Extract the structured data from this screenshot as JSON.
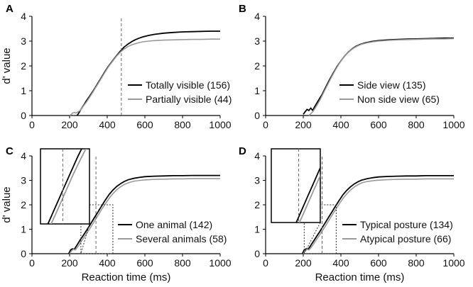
{
  "chart_data": [
    {
      "type": "line",
      "panel": "A",
      "xlabel": "",
      "ylabel": "d' value",
      "xlim": [
        0,
        1000
      ],
      "ylim": [
        0,
        4
      ],
      "xticks": [
        "0",
        "200",
        "400",
        "600",
        "800",
        "1000"
      ],
      "yticks": [
        "0",
        "1",
        "2",
        "3",
        "4"
      ],
      "series": [
        {
          "name": "Totally visible (156)",
          "color": "#000000",
          "x": [
            240,
            250,
            260,
            275,
            290,
            310,
            330,
            350,
            370,
            390,
            410,
            430,
            450,
            470,
            490,
            510,
            530,
            550,
            570,
            590,
            620,
            650,
            700,
            750,
            800,
            850,
            900,
            950,
            1000
          ],
          "y": [
            0,
            0.12,
            0.25,
            0.42,
            0.6,
            0.82,
            1.05,
            1.3,
            1.55,
            1.8,
            2.02,
            2.22,
            2.42,
            2.6,
            2.76,
            2.88,
            2.98,
            3.06,
            3.12,
            3.17,
            3.23,
            3.27,
            3.32,
            3.35,
            3.37,
            3.38,
            3.39,
            3.4,
            3.4
          ]
        },
        {
          "name": "Partially visible (44)",
          "color": "#999999",
          "x": [
            200,
            210,
            215,
            225,
            235,
            245,
            255,
            270,
            290,
            310,
            330,
            350,
            370,
            390,
            410,
            430,
            450,
            470,
            490,
            510,
            530,
            550,
            570,
            590,
            620,
            650,
            700,
            750,
            800,
            850,
            900,
            950,
            1000
          ],
          "y": [
            0,
            0.05,
            0.1,
            0.12,
            0.1,
            0.15,
            0.2,
            0.35,
            0.55,
            0.78,
            1.02,
            1.27,
            1.52,
            1.77,
            2.0,
            2.2,
            2.4,
            2.56,
            2.68,
            2.78,
            2.85,
            2.9,
            2.94,
            2.97,
            3.0,
            3.02,
            3.04,
            3.05,
            3.06,
            3.07,
            3.07,
            3.08,
            3.08
          ]
        }
      ],
      "markers": [
        {
          "type": "vline",
          "x": 475
        }
      ]
    },
    {
      "type": "line",
      "panel": "B",
      "xlabel": "",
      "ylabel": "",
      "xlim": [
        0,
        1000
      ],
      "ylim": [
        0,
        4
      ],
      "xticks": [
        "0",
        "200",
        "400",
        "600",
        "800",
        "1000"
      ],
      "yticks": [
        "0",
        "1",
        "2",
        "3",
        "4"
      ],
      "series": [
        {
          "name": "Side view (135)",
          "color": "#000000",
          "x": [
            200,
            210,
            220,
            230,
            240,
            250,
            260,
            280,
            300,
            320,
            340,
            360,
            380,
            400,
            420,
            440,
            460,
            480,
            500,
            530,
            560,
            600,
            650,
            700,
            750,
            800,
            850,
            900,
            950,
            1000
          ],
          "y": [
            0.05,
            0.15,
            0.25,
            0.2,
            0.3,
            0.2,
            0.35,
            0.6,
            0.85,
            1.15,
            1.45,
            1.72,
            1.98,
            2.2,
            2.4,
            2.56,
            2.69,
            2.79,
            2.86,
            2.93,
            2.98,
            3.02,
            3.05,
            3.07,
            3.08,
            3.09,
            3.1,
            3.11,
            3.12,
            3.12
          ]
        },
        {
          "name": "Non side view (65)",
          "color": "#999999",
          "x": [
            230,
            250,
            270,
            290,
            310,
            330,
            350,
            370,
            390,
            410,
            430,
            450,
            470,
            490,
            510,
            540,
            570,
            600,
            650,
            700,
            750,
            800,
            850,
            900,
            950,
            1000
          ],
          "y": [
            0,
            0.15,
            0.38,
            0.65,
            0.95,
            1.25,
            1.55,
            1.83,
            2.08,
            2.3,
            2.48,
            2.62,
            2.73,
            2.81,
            2.87,
            2.93,
            2.97,
            3.0,
            3.03,
            3.05,
            3.06,
            3.07,
            3.08,
            3.09,
            3.09,
            3.1
          ]
        }
      ]
    },
    {
      "type": "line",
      "panel": "C",
      "xlabel": "Reaction time (ms)",
      "ylabel": "d' value",
      "xlim": [
        0,
        1000
      ],
      "ylim": [
        0,
        4
      ],
      "xticks": [
        "0",
        "200",
        "400",
        "600",
        "800",
        "1000"
      ],
      "yticks": [
        "0",
        "1",
        "2",
        "3",
        "4"
      ],
      "series": [
        {
          "name": "One animal (142)",
          "color": "#000000",
          "x": [
            195,
            205,
            215,
            225,
            235,
            245,
            255,
            270,
            290,
            310,
            330,
            350,
            370,
            390,
            410,
            430,
            450,
            470,
            490,
            510,
            540,
            570,
            600,
            650,
            700,
            750,
            800,
            850,
            900,
            950,
            1000
          ],
          "y": [
            0,
            0.15,
            0.2,
            0.18,
            0.3,
            0.42,
            0.55,
            0.72,
            0.95,
            1.2,
            1.45,
            1.7,
            1.95,
            2.2,
            2.42,
            2.6,
            2.75,
            2.86,
            2.95,
            3.02,
            3.08,
            3.12,
            3.15,
            3.17,
            3.18,
            3.19,
            3.19,
            3.2,
            3.2,
            3.2,
            3.2
          ]
        },
        {
          "name": "Several animals (58)",
          "color": "#999999",
          "x": [
            200,
            210,
            220,
            230,
            240,
            250,
            260,
            275,
            295,
            315,
            335,
            355,
            375,
            395,
            415,
            435,
            455,
            475,
            495,
            515,
            545,
            575,
            605,
            650,
            700,
            750,
            800,
            850,
            900,
            950,
            1000
          ],
          "y": [
            0,
            0.12,
            0.18,
            0.15,
            0.25,
            0.35,
            0.48,
            0.65,
            0.88,
            1.12,
            1.37,
            1.62,
            1.87,
            2.1,
            2.32,
            2.5,
            2.65,
            2.76,
            2.85,
            2.91,
            2.97,
            3.0,
            3.02,
            3.04,
            3.05,
            3.06,
            3.06,
            3.07,
            3.07,
            3.07,
            3.07
          ]
        }
      ],
      "markers": [
        {
          "type": "vline",
          "x": 340
        },
        {
          "type": "box",
          "x0": 260,
          "x1": 430,
          "y0": 0,
          "y1": 2
        }
      ]
    },
    {
      "type": "line",
      "panel": "D",
      "xlabel": "Reaction time (ms)",
      "ylabel": "",
      "xlim": [
        0,
        1000
      ],
      "ylim": [
        0,
        4
      ],
      "xticks": [
        "0",
        "200",
        "400",
        "600",
        "800",
        "1000"
      ],
      "yticks": [
        "0",
        "1",
        "2",
        "3",
        "4"
      ],
      "series": [
        {
          "name": "Typical posture (134)",
          "color": "#000000",
          "x": [
            195,
            205,
            215,
            225,
            235,
            245,
            255,
            270,
            290,
            310,
            330,
            350,
            370,
            390,
            410,
            430,
            450,
            470,
            490,
            510,
            540,
            570,
            600,
            650,
            700,
            750,
            800,
            850,
            900,
            950,
            1000
          ],
          "y": [
            0,
            0.15,
            0.2,
            0.18,
            0.28,
            0.4,
            0.52,
            0.7,
            0.93,
            1.18,
            1.43,
            1.68,
            1.93,
            2.17,
            2.4,
            2.58,
            2.73,
            2.85,
            2.94,
            3.01,
            3.07,
            3.11,
            3.14,
            3.16,
            3.17,
            3.18,
            3.18,
            3.19,
            3.19,
            3.19,
            3.19
          ]
        },
        {
          "name": "Atypical posture (66)",
          "color": "#999999",
          "x": [
            200,
            210,
            220,
            230,
            240,
            250,
            260,
            275,
            295,
            315,
            335,
            355,
            375,
            395,
            415,
            435,
            455,
            475,
            495,
            515,
            545,
            575,
            605,
            650,
            700,
            750,
            800,
            850,
            900,
            950,
            1000
          ],
          "y": [
            0,
            0.12,
            0.18,
            0.15,
            0.24,
            0.34,
            0.46,
            0.63,
            0.86,
            1.1,
            1.35,
            1.6,
            1.84,
            2.08,
            2.3,
            2.48,
            2.63,
            2.75,
            2.84,
            2.91,
            2.96,
            2.99,
            3.01,
            3.03,
            3.04,
            3.05,
            3.05,
            3.06,
            3.06,
            3.06,
            3.06
          ]
        }
      ],
      "markers": [
        {
          "type": "vline",
          "x": 300
        },
        {
          "type": "box",
          "x0": 205,
          "x1": 375,
          "y0": 0,
          "y1": 2
        }
      ]
    }
  ]
}
